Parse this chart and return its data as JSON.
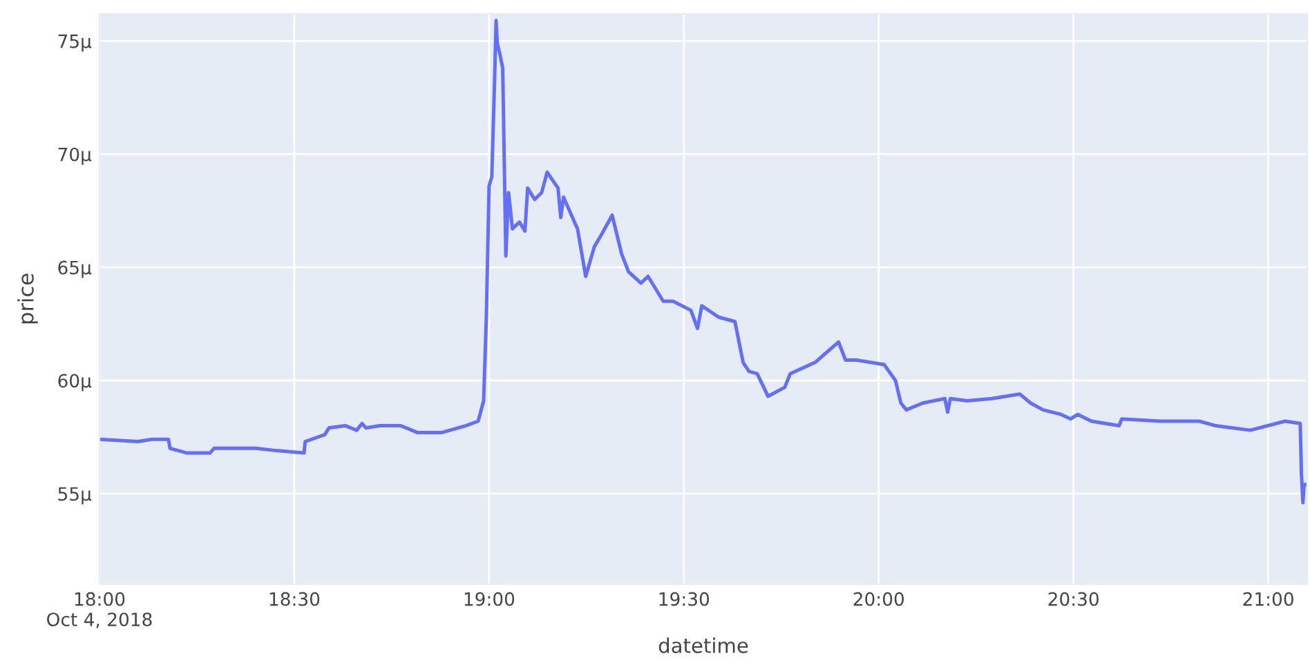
{
  "chart_data": {
    "type": "line",
    "xlabel": "datetime",
    "ylabel": "price",
    "x": [
      18.0,
      18.099,
      18.135,
      18.177,
      18.181,
      18.223,
      18.284,
      18.294,
      18.401,
      18.454,
      18.525,
      18.528,
      18.578,
      18.589,
      18.631,
      18.66,
      18.674,
      18.684,
      18.72,
      18.773,
      18.816,
      18.879,
      18.94,
      18.972,
      18.986,
      18.993,
      19.0,
      19.007,
      19.014,
      19.018,
      19.021,
      19.028,
      19.035,
      19.043,
      19.05,
      19.06,
      19.078,
      19.092,
      19.099,
      19.117,
      19.135,
      19.149,
      19.177,
      19.184,
      19.191,
      19.227,
      19.248,
      19.27,
      19.287,
      19.316,
      19.34,
      19.358,
      19.39,
      19.408,
      19.447,
      19.472,
      19.518,
      19.535,
      19.546,
      19.589,
      19.631,
      19.652,
      19.667,
      19.688,
      19.716,
      19.759,
      19.773,
      19.837,
      19.897,
      19.915,
      19.943,
      20.014,
      20.043,
      20.057,
      20.071,
      20.113,
      20.17,
      20.177,
      20.184,
      20.227,
      20.291,
      20.362,
      20.39,
      20.422,
      20.468,
      20.493,
      20.511,
      20.546,
      20.617,
      20.624,
      20.723,
      20.823,
      20.865,
      20.954,
      21.043,
      21.082,
      21.085,
      21.089,
      21.092,
      21.099
    ],
    "series": [
      {
        "color": "#636efa",
        "values": [
          57.4,
          57.3,
          57.4,
          57.4,
          57,
          56.8,
          56.8,
          57,
          57,
          56.9,
          56.8,
          57.3,
          57.6,
          57.9,
          58,
          57.8,
          58.1,
          57.9,
          58,
          58,
          57.7,
          57.7,
          58,
          58.2,
          59.1,
          62.8,
          68.6,
          69,
          73.2,
          75.9,
          74.9,
          74.4,
          73.8,
          65.5,
          68.3,
          66.7,
          67,
          66.6,
          68.5,
          68,
          68.3,
          69.2,
          68.5,
          67.2,
          68.1,
          66.7,
          64.6,
          65.9,
          66.4,
          67.3,
          65.6,
          64.8,
          64.3,
          64.6,
          63.5,
          63.5,
          63.1,
          62.3,
          63.3,
          62.8,
          62.6,
          60.8,
          60.4,
          60.3,
          59.3,
          59.7,
          60.3,
          60.8,
          61.7,
          60.9,
          60.9,
          60.7,
          60,
          59,
          58.7,
          59,
          59.2,
          58.6,
          59.2,
          59.1,
          59.2,
          59.4,
          59,
          58.7,
          58.5,
          58.3,
          58.5,
          58.2,
          58,
          58.3,
          58.2,
          58.2,
          58,
          57.8,
          58.2,
          58.1,
          55.9,
          54.6,
          55.4,
          55.4
        ]
      }
    ],
    "xlim": [
      18,
      21.1
    ],
    "xticks": [
      {
        "value": 18,
        "label": "18:00\nOct 4, 2018"
      },
      {
        "value": 18.5,
        "label": "18:30"
      },
      {
        "value": 19,
        "label": "19:00"
      },
      {
        "value": 19.5,
        "label": "19:30"
      },
      {
        "value": 20,
        "label": "20:00"
      },
      {
        "value": 20.5,
        "label": "20:30"
      },
      {
        "value": 21,
        "label": "21:00"
      }
    ],
    "ylim": [
      51,
      76.2
    ],
    "yticks": [
      {
        "value": 55,
        "label": "55µ"
      },
      {
        "value": 60,
        "label": "60µ"
      },
      {
        "value": 65,
        "label": "65µ"
      },
      {
        "value": 70,
        "label": "70µ"
      },
      {
        "value": 75,
        "label": "75µ"
      }
    ],
    "grid": true,
    "marker": "none",
    "line_style": "solid"
  }
}
